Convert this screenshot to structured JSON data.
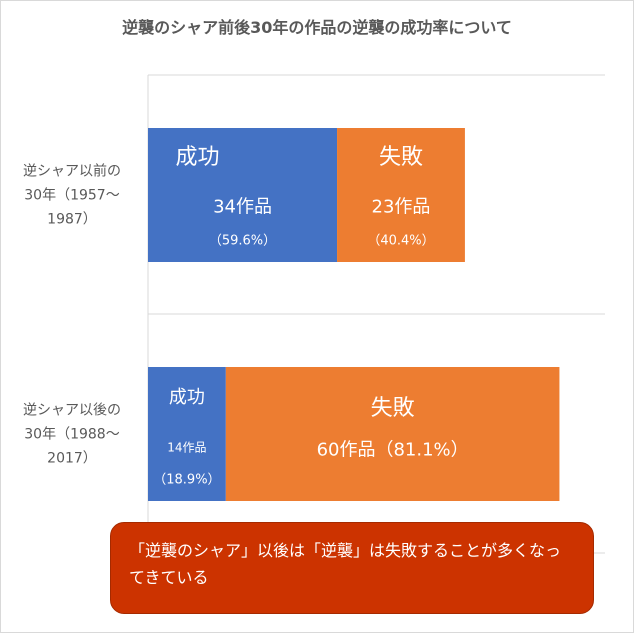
{
  "chart_data": {
    "type": "bar",
    "orientation": "horizontal",
    "stacked": true,
    "title": "逆襲のシャア前後30年の作品の逆襲の成功率について",
    "categories": [
      {
        "lines": [
          "逆シャア以前の",
          "30年（1957～",
          "1987）"
        ]
      },
      {
        "lines": [
          "逆シャア以後の",
          "30年（1988～",
          "2017）"
        ]
      }
    ],
    "series": [
      {
        "name": "成功",
        "color": "#4472c4",
        "values": [
          34,
          14
        ],
        "value_labels": [
          "34作品",
          "14作品"
        ],
        "pct_labels": [
          "（59.6%）",
          "（18.9%）"
        ]
      },
      {
        "name": "失敗",
        "color": "#ed7d31",
        "values": [
          23,
          60
        ],
        "value_labels": [
          "23作品",
          "60作品（81.1%）"
        ],
        "pct_labels": [
          "（40.4%）",
          ""
        ]
      }
    ],
    "xlim": [
      0,
      80
    ],
    "grid": true,
    "legend": "none"
  },
  "callout": {
    "text": "「逆襲のシャア」以後は「逆襲」は失敗することが多くなってきている"
  }
}
